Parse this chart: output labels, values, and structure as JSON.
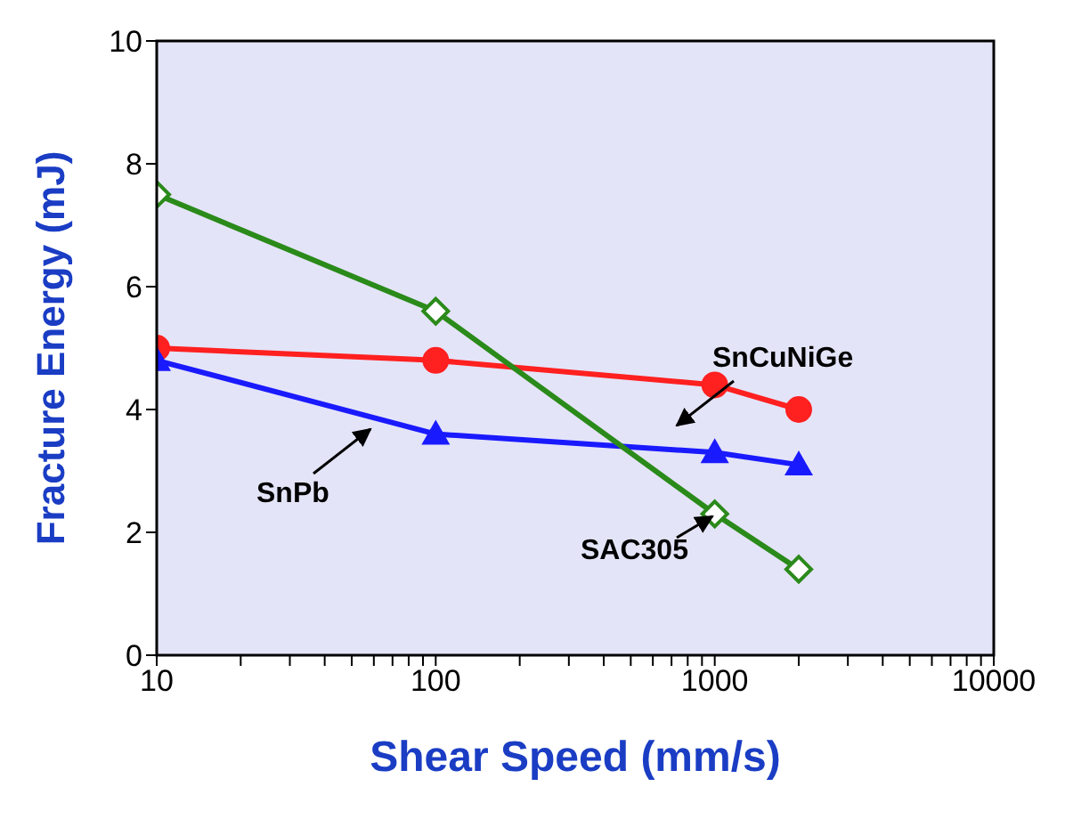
{
  "chart_data": {
    "type": "line",
    "xlabel": "Shear Speed (mm/s)",
    "ylabel": "Fracture Energy (mJ)",
    "x": [
      10,
      100,
      1000,
      2000
    ],
    "log": "x",
    "xlim": [
      10,
      10000
    ],
    "xticks": [
      10,
      {
        "value": 20,
        "label": null
      },
      {
        "value": 30,
        "label": null
      },
      {
        "value": 40,
        "label": null
      },
      {
        "value": 50,
        "label": null
      },
      {
        "value": 60,
        "label": null
      },
      {
        "value": 70,
        "label": null
      },
      {
        "value": 80,
        "label": null
      },
      {
        "value": 90,
        "label": null
      },
      100,
      {
        "value": 200,
        "label": null
      },
      {
        "value": 300,
        "label": null
      },
      {
        "value": 400,
        "label": null
      },
      {
        "value": 500,
        "label": null
      },
      {
        "value": 600,
        "label": null
      },
      {
        "value": 700,
        "label": null
      },
      {
        "value": 800,
        "label": null
      },
      {
        "value": 900,
        "label": null
      },
      1000,
      {
        "value": 2000,
        "label": null
      },
      {
        "value": 3000,
        "label": null
      },
      {
        "value": 4000,
        "label": null
      },
      {
        "value": 5000,
        "label": null
      },
      {
        "value": 6000,
        "label": null
      },
      {
        "value": 7000,
        "label": null
      },
      {
        "value": 8000,
        "label": null
      },
      {
        "value": 9000,
        "label": null
      },
      10000
    ],
    "ylim": [
      0,
      10
    ],
    "yticks": [
      0,
      2,
      4,
      6,
      8,
      10
    ],
    "grid": false,
    "series": [
      {
        "name": "SnCuNiGe",
        "color": "#ff2020",
        "marker": "circle",
        "values": [
          5.0,
          4.8,
          4.4,
          4.0
        ]
      },
      {
        "name": "SnPb",
        "color": "#1a1aff",
        "marker": "triangle",
        "values": [
          4.8,
          3.6,
          3.3,
          3.1
        ]
      },
      {
        "name": "SAC305",
        "color": "#2a8a1a",
        "marker": "diamond",
        "values": [
          7.5,
          5.6,
          2.3,
          1.4
        ]
      }
    ]
  }
}
